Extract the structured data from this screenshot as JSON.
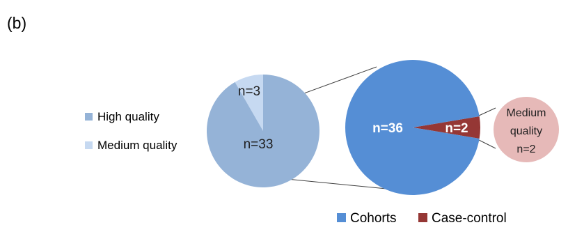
{
  "panel_label": "(b)",
  "chart_data": [
    {
      "type": "pie",
      "categories": [
        "High quality",
        "Medium quality"
      ],
      "values": [
        33,
        3
      ],
      "value_labels": [
        "n=33",
        "n=3"
      ],
      "colors": [
        "#95b3d7",
        "#c6d9f1"
      ],
      "legend": {
        "placement": "left",
        "labels": [
          "High quality",
          "Medium quality"
        ]
      }
    },
    {
      "type": "pie",
      "categories": [
        "Cohorts",
        "Case-control"
      ],
      "values": [
        36,
        2
      ],
      "value_labels": [
        "n=36",
        "n=2"
      ],
      "colors": [
        "#558ed5",
        "#953735"
      ],
      "legend": {
        "placement": "bottom",
        "labels": [
          "Cohorts",
          "Case-control"
        ]
      }
    },
    {
      "type": "pie",
      "categories": [
        "Medium quality"
      ],
      "values": [
        2
      ],
      "value_labels": [
        "Medium",
        "quality",
        "n=2"
      ],
      "colors": [
        "#e6b9b8"
      ]
    }
  ]
}
